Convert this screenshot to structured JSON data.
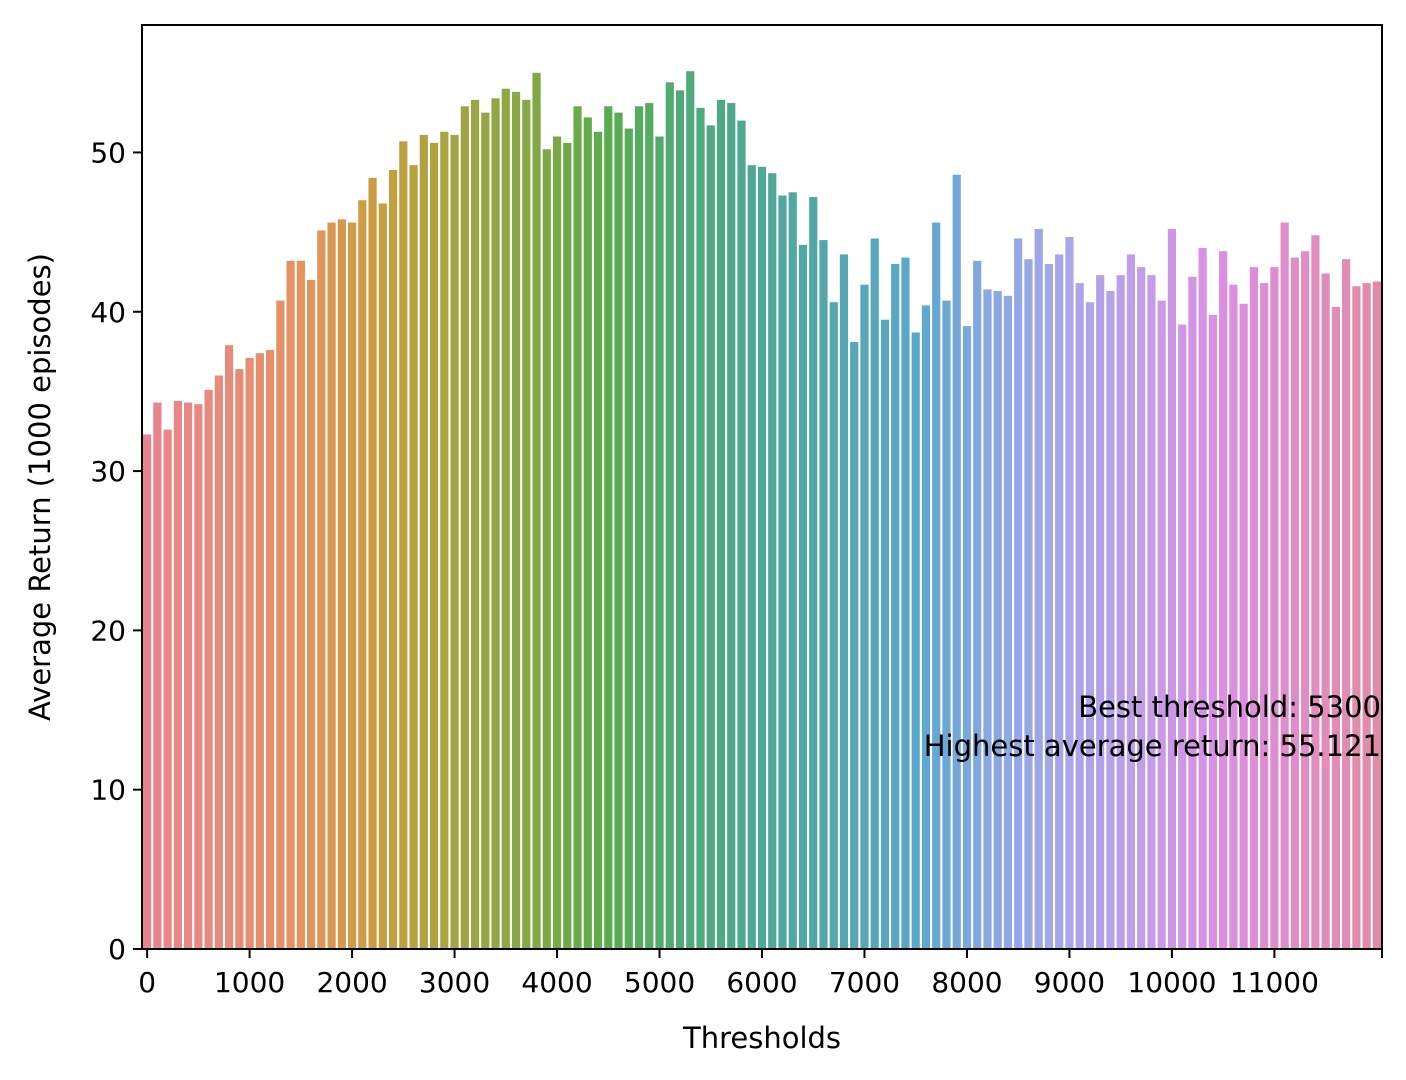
{
  "chart_data": {
    "type": "bar",
    "title": "",
    "xlabel": "Thresholds",
    "ylabel": "Average Return (1000 episodes)",
    "ylim": [
      0,
      58
    ],
    "yticks": [
      0,
      10,
      20,
      30,
      40,
      50
    ],
    "xticks": [
      0,
      1000,
      2000,
      3000,
      4000,
      5000,
      6000,
      7000,
      8000,
      9000,
      10000,
      11000
    ],
    "legend": "none",
    "grid": false,
    "x": [
      0,
      100,
      200,
      300,
      400,
      500,
      600,
      700,
      800,
      900,
      1000,
      1100,
      1200,
      1300,
      1400,
      1500,
      1600,
      1700,
      1800,
      1900,
      2000,
      2100,
      2200,
      2300,
      2400,
      2500,
      2600,
      2700,
      2800,
      2900,
      3000,
      3100,
      3200,
      3300,
      3400,
      3500,
      3600,
      3700,
      3800,
      3900,
      4000,
      4100,
      4200,
      4300,
      4400,
      4500,
      4600,
      4700,
      4800,
      4900,
      5000,
      5100,
      5200,
      5300,
      5400,
      5500,
      5600,
      5700,
      5800,
      5900,
      6000,
      6100,
      6200,
      6300,
      6400,
      6500,
      6600,
      6700,
      6800,
      6900,
      7000,
      7100,
      7200,
      7300,
      7400,
      7500,
      7600,
      7700,
      7800,
      7900,
      8000,
      8100,
      8200,
      8300,
      8400,
      8500,
      8600,
      8700,
      8800,
      8900,
      9000,
      9100,
      9200,
      9300,
      9400,
      9500,
      9600,
      9700,
      9800,
      9900,
      10000,
      10100,
      10200,
      10300,
      10400,
      10500,
      10600,
      10700,
      10800,
      10900,
      11000,
      11100,
      11200,
      11300,
      11400,
      11500,
      11600,
      11700,
      11800,
      11900,
      12000
    ],
    "values": [
      32.3,
      34.3,
      32.6,
      34.4,
      34.3,
      34.2,
      35.1,
      36.0,
      37.9,
      36.4,
      37.1,
      37.4,
      37.6,
      40.7,
      43.2,
      43.2,
      42.0,
      45.1,
      45.6,
      45.8,
      45.6,
      47.0,
      48.4,
      46.8,
      48.9,
      50.7,
      49.2,
      51.1,
      50.6,
      51.3,
      51.1,
      52.9,
      53.3,
      52.5,
      53.4,
      54.0,
      53.8,
      53.3,
      55.0,
      50.2,
      51.0,
      50.6,
      52.9,
      52.2,
      51.3,
      52.9,
      52.5,
      51.5,
      52.9,
      53.1,
      51.0,
      54.4,
      53.9,
      55.1,
      52.8,
      51.7,
      53.3,
      53.1,
      52.0,
      49.2,
      49.1,
      48.7,
      47.3,
      47.5,
      44.2,
      47.2,
      44.5,
      40.6,
      43.6,
      38.1,
      41.7,
      44.6,
      39.5,
      43.0,
      43.4,
      38.7,
      40.4,
      45.6,
      40.7,
      48.6,
      39.1,
      43.2,
      41.4,
      41.3,
      41.0,
      44.6,
      43.3,
      45.2,
      43.0,
      43.6,
      44.7,
      41.8,
      40.6,
      42.3,
      41.3,
      42.3,
      43.6,
      42.8,
      42.3,
      40.7,
      45.2,
      39.2,
      42.2,
      44.0,
      39.8,
      43.8,
      41.7,
      40.5,
      42.8,
      41.8,
      42.8,
      45.6,
      43.4,
      43.8,
      44.8,
      42.4,
      40.3,
      43.3,
      41.6,
      41.8,
      41.9
    ],
    "colors": [
      "#e8848f",
      "#e78c7c",
      "#e5925f",
      "#c99e3e",
      "#a4a443",
      "#84a845",
      "#59ad4c",
      "#4fa979",
      "#4fa898",
      "#55a6ae",
      "#5aa8cc",
      "#8aa8e3",
      "#aaa6e8",
      "#c39de8",
      "#dd8ee3",
      "#e08dc5",
      "#e28ba6"
    ],
    "annotations": [
      "Best threshold: 5300",
      "Highest average return: 55.121"
    ]
  }
}
